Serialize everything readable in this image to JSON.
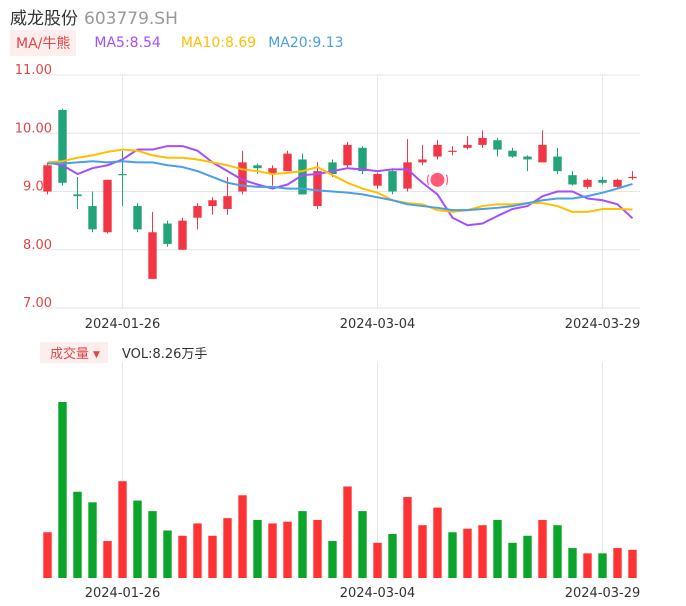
{
  "header": {
    "name": "威龙股份",
    "code": "603779.SH"
  },
  "ma_legend": {
    "tag": "MA/牛熊",
    "ma5": "MA5:8.54",
    "ma10": "MA10:8.69",
    "ma20": "MA20:9.13"
  },
  "volume_legend": {
    "tag": "成交量",
    "value": "VOL:8.26万手"
  },
  "colors": {
    "up": "#f23645",
    "down": "#22a37a",
    "vol_up": "#ff3333",
    "vol_down": "#0aa52a",
    "ma5": "#a64dff",
    "ma10": "#ffc000",
    "ma20": "#4a9eea",
    "axis_text": "#e04646",
    "grid": "#e6e6e6"
  },
  "icons": {
    "marker": "bull-marker-icon",
    "dropdown": "caret-down-icon"
  },
  "chart_data": [
    {
      "type": "candlestick",
      "y_ticks": [
        "11.00",
        "10.00",
        "9.00",
        "8.00",
        "7.00"
      ],
      "ylim": [
        7.0,
        11.0
      ],
      "x_ticks": [
        {
          "label": "2024-01-26",
          "index": 5
        },
        {
          "label": "2024-03-04",
          "index": 22
        },
        {
          "label": "2024-03-29",
          "index": 37
        }
      ],
      "candles": [
        {
          "o": 9.0,
          "c": 9.45,
          "h": 9.5,
          "l": 8.95
        },
        {
          "o": 10.4,
          "c": 9.15,
          "h": 10.42,
          "l": 9.1
        },
        {
          "o": 8.95,
          "c": 8.92,
          "h": 9.25,
          "l": 8.7
        },
        {
          "o": 8.75,
          "c": 8.35,
          "h": 9.0,
          "l": 8.3
        },
        {
          "o": 8.3,
          "c": 9.2,
          "h": 9.2,
          "l": 8.28
        },
        {
          "o": 9.3,
          "c": 9.28,
          "h": 9.7,
          "l": 8.75
        },
        {
          "o": 8.75,
          "c": 8.35,
          "h": 8.8,
          "l": 8.3
        },
        {
          "o": 7.5,
          "c": 8.3,
          "h": 8.65,
          "l": 7.5
        },
        {
          "o": 8.45,
          "c": 8.1,
          "h": 8.5,
          "l": 8.05
        },
        {
          "o": 8.0,
          "c": 8.5,
          "h": 8.55,
          "l": 8.0
        },
        {
          "o": 8.55,
          "c": 8.75,
          "h": 8.8,
          "l": 8.35
        },
        {
          "o": 8.75,
          "c": 8.85,
          "h": 8.9,
          "l": 8.6
        },
        {
          "o": 8.7,
          "c": 8.92,
          "h": 9.25,
          "l": 8.6
        },
        {
          "o": 9.0,
          "c": 9.5,
          "h": 9.7,
          "l": 8.95
        },
        {
          "o": 9.45,
          "c": 9.4,
          "h": 9.48,
          "l": 9.3
        },
        {
          "o": 9.3,
          "c": 9.4,
          "h": 9.45,
          "l": 9.1
        },
        {
          "o": 9.35,
          "c": 9.65,
          "h": 9.7,
          "l": 9.35
        },
        {
          "o": 9.55,
          "c": 8.95,
          "h": 9.65,
          "l": 8.95
        },
        {
          "o": 8.75,
          "c": 9.35,
          "h": 9.5,
          "l": 8.7
        },
        {
          "o": 9.5,
          "c": 9.3,
          "h": 9.55,
          "l": 9.25
        },
        {
          "o": 9.45,
          "c": 9.8,
          "h": 9.85,
          "l": 9.4
        },
        {
          "o": 9.75,
          "c": 9.35,
          "h": 9.78,
          "l": 9.3
        },
        {
          "o": 9.1,
          "c": 9.3,
          "h": 9.32,
          "l": 9.05
        },
        {
          "o": 9.35,
          "c": 9.0,
          "h": 9.4,
          "l": 8.95
        },
        {
          "o": 9.05,
          "c": 9.5,
          "h": 9.9,
          "l": 9.0
        },
        {
          "o": 9.5,
          "c": 9.55,
          "h": 9.8,
          "l": 9.45
        },
        {
          "o": 9.6,
          "c": 9.8,
          "h": 9.88,
          "l": 9.55
        },
        {
          "o": 9.7,
          "c": 9.7,
          "h": 9.78,
          "l": 9.62
        },
        {
          "o": 9.75,
          "c": 9.8,
          "h": 9.95,
          "l": 9.72
        },
        {
          "o": 9.8,
          "c": 9.92,
          "h": 10.05,
          "l": 9.75
        },
        {
          "o": 9.88,
          "c": 9.72,
          "h": 9.92,
          "l": 9.6
        },
        {
          "o": 9.7,
          "c": 9.6,
          "h": 9.75,
          "l": 9.58
        },
        {
          "o": 9.6,
          "c": 9.55,
          "h": 9.62,
          "l": 9.35
        },
        {
          "o": 9.5,
          "c": 9.8,
          "h": 10.05,
          "l": 9.5
        },
        {
          "o": 9.6,
          "c": 9.35,
          "h": 9.75,
          "l": 9.3
        },
        {
          "o": 9.28,
          "c": 9.12,
          "h": 9.35,
          "l": 9.1
        },
        {
          "o": 9.08,
          "c": 9.2,
          "h": 9.22,
          "l": 9.05
        },
        {
          "o": 9.2,
          "c": 9.15,
          "h": 9.25,
          "l": 9.12
        },
        {
          "o": 9.08,
          "c": 9.2,
          "h": 9.22,
          "l": 9.05
        },
        {
          "o": 9.25,
          "c": 9.25,
          "h": 9.35,
          "l": 9.2
        }
      ],
      "series": [
        {
          "name": "MA5",
          "values": [
            9.5,
            9.45,
            9.3,
            9.4,
            9.45,
            9.55,
            9.72,
            9.72,
            9.78,
            9.78,
            9.7,
            9.5,
            9.35,
            9.2,
            9.12,
            9.05,
            9.12,
            9.28,
            9.3,
            9.35,
            9.4,
            9.38,
            9.35,
            9.38,
            9.38,
            9.15,
            8.95,
            8.55,
            8.42,
            8.45,
            8.58,
            8.7,
            8.75,
            8.92,
            9.0,
            9.0,
            8.88,
            8.85,
            8.78,
            8.54
          ]
        },
        {
          "name": "MA10",
          "values": [
            9.5,
            9.52,
            9.58,
            9.62,
            9.68,
            9.72,
            9.7,
            9.62,
            9.58,
            9.58,
            9.55,
            9.5,
            9.45,
            9.38,
            9.35,
            9.3,
            9.32,
            9.35,
            9.42,
            9.28,
            9.15,
            9.05,
            8.98,
            8.85,
            8.8,
            8.78,
            8.68,
            8.65,
            8.68,
            8.75,
            8.78,
            8.78,
            8.8,
            8.8,
            8.75,
            8.65,
            8.65,
            8.7,
            8.7,
            8.69
          ]
        },
        {
          "name": "MA20",
          "values": [
            9.48,
            9.48,
            9.5,
            9.52,
            9.5,
            9.52,
            9.5,
            9.5,
            9.45,
            9.42,
            9.35,
            9.25,
            9.15,
            9.1,
            9.08,
            9.08,
            9.05,
            9.05,
            9.02,
            9.0,
            8.98,
            8.95,
            8.9,
            8.85,
            8.78,
            8.75,
            8.72,
            8.68,
            8.68,
            8.7,
            8.72,
            8.75,
            8.8,
            8.85,
            8.88,
            8.88,
            8.92,
            8.98,
            9.05,
            9.13
          ]
        }
      ]
    },
    {
      "type": "bar",
      "name": "成交量",
      "values": [
        0.26,
        1.0,
        0.49,
        0.43,
        0.21,
        0.55,
        0.44,
        0.38,
        0.27,
        0.24,
        0.31,
        0.24,
        0.34,
        0.47,
        0.33,
        0.31,
        0.32,
        0.38,
        0.33,
        0.21,
        0.52,
        0.38,
        0.2,
        0.25,
        0.46,
        0.3,
        0.4,
        0.26,
        0.28,
        0.3,
        0.33,
        0.2,
        0.24,
        0.33,
        0.3,
        0.17,
        0.14,
        0.14,
        0.17,
        0.16
      ],
      "up": [
        true,
        false,
        false,
        false,
        true,
        true,
        false,
        false,
        false,
        true,
        true,
        true,
        true,
        true,
        false,
        true,
        true,
        false,
        true,
        false,
        true,
        false,
        true,
        false,
        true,
        true,
        true,
        false,
        true,
        true,
        false,
        false,
        false,
        true,
        false,
        false,
        true,
        false,
        true,
        true
      ]
    }
  ]
}
